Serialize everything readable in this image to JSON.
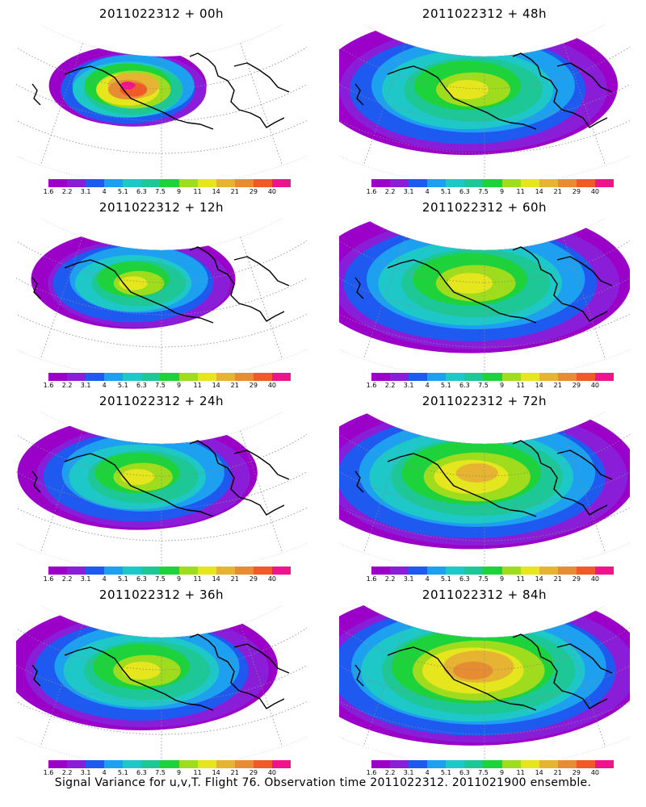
{
  "chart_data": {
    "type": "heatmap",
    "caption": "Signal Variance for u,v,T. Flight 76. Observation time 2011022312. 2011021900 ensemble.",
    "colorbar": {
      "labels": [
        "1.6",
        "2.2",
        "3.1",
        "4",
        "5.1",
        "6.3",
        "7.5",
        "9",
        "11",
        "14",
        "21",
        "29",
        "40"
      ],
      "colors": [
        "#9a00c8",
        "#8a1ed8",
        "#1e5af0",
        "#1ea0f0",
        "#1ec8c8",
        "#1ec896",
        "#1ed23c",
        "#a0dc1e",
        "#e6e61e",
        "#e6b432",
        "#e68c32",
        "#f05a28",
        "#f0148c"
      ]
    },
    "panels": [
      {
        "title": "2011022312 + 00h",
        "lead_hours": 0,
        "spread": 0.28,
        "peak_level": 13
      },
      {
        "title": "2011022312 + 48h",
        "lead_hours": 48,
        "spread": 0.8,
        "peak_level": 8
      },
      {
        "title": "2011022312 + 12h",
        "lead_hours": 12,
        "spread": 0.45,
        "peak_level": 8
      },
      {
        "title": "2011022312 + 60h",
        "lead_hours": 60,
        "spread": 0.88,
        "peak_level": 8
      },
      {
        "title": "2011022312 + 24h",
        "lead_hours": 24,
        "spread": 0.58,
        "peak_level": 8
      },
      {
        "title": "2011022312 + 72h",
        "lead_hours": 72,
        "spread": 0.92,
        "peak_level": 9
      },
      {
        "title": "2011022312 + 36h",
        "lead_hours": 36,
        "spread": 0.7,
        "peak_level": 8
      },
      {
        "title": "2011022312 + 84h",
        "lead_hours": 84,
        "spread": 0.97,
        "peak_level": 10
      }
    ]
  }
}
